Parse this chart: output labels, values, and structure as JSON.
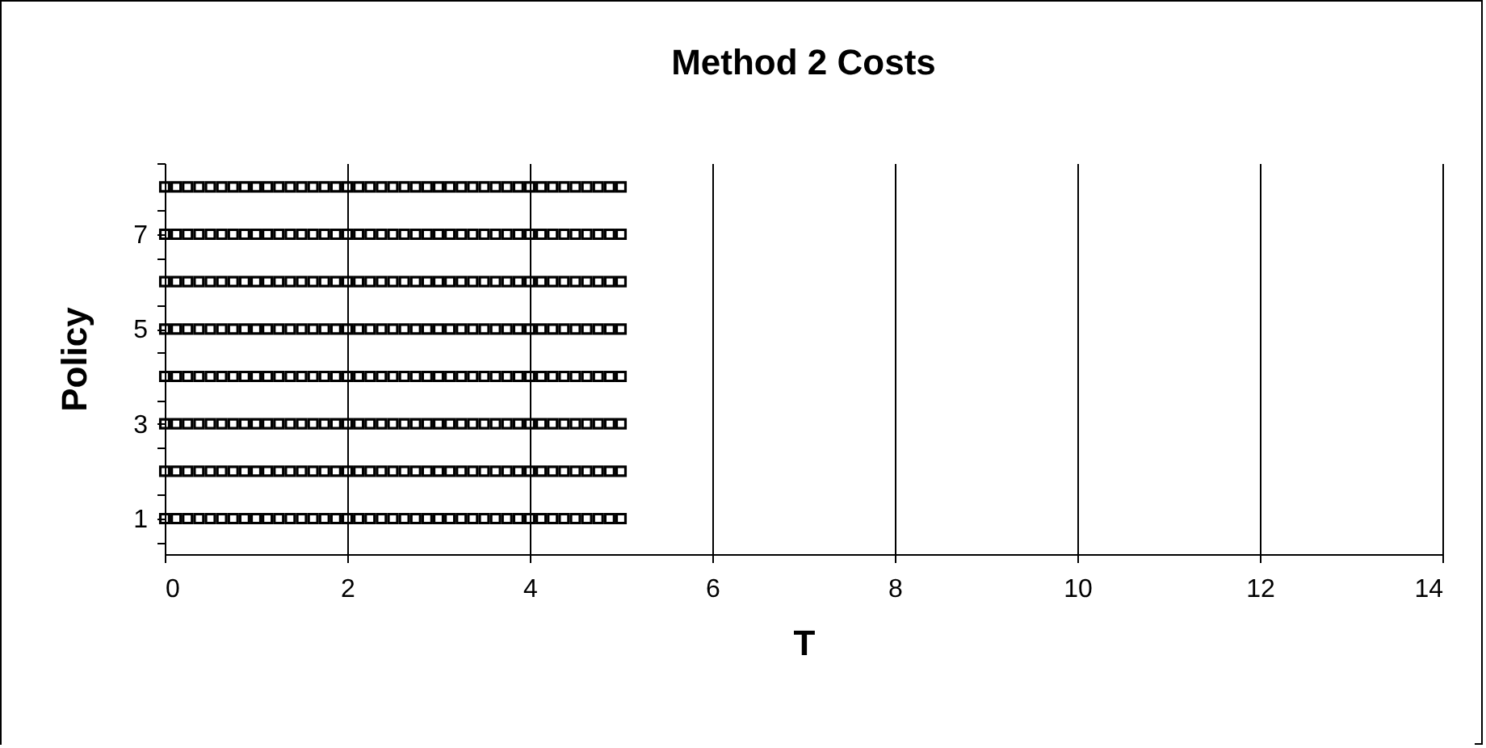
{
  "chart_data": {
    "type": "scatter",
    "title": "Method 2 Costs",
    "xlabel": "T",
    "ylabel": "Policy",
    "x": [
      0,
      0.125,
      0.25,
      0.375,
      0.5,
      0.625,
      0.75,
      0.875,
      1,
      1.125,
      1.25,
      1.375,
      1.5,
      1.625,
      1.75,
      1.875,
      2,
      2.125,
      2.25,
      2.375,
      2.5,
      2.625,
      2.75,
      2.875,
      3,
      3.125,
      3.25,
      3.375,
      3.5,
      3.625,
      3.75,
      3.875,
      4,
      4.125,
      4.25,
      4.375,
      4.5,
      4.625,
      4.75,
      4.875,
      5
    ],
    "series": [
      {
        "color": "#000000",
        "values": [
          1,
          1,
          1,
          1,
          1,
          1,
          1,
          1,
          1,
          1,
          1,
          1,
          1,
          1,
          1,
          1,
          1,
          1,
          1,
          1,
          1,
          1,
          1,
          1,
          1,
          1,
          1,
          1,
          1,
          1,
          1,
          1,
          1,
          1,
          1,
          1,
          1,
          1,
          1,
          1,
          1
        ]
      },
      {
        "color": "#000000",
        "values": [
          2,
          2,
          2,
          2,
          2,
          2,
          2,
          2,
          2,
          2,
          2,
          2,
          2,
          2,
          2,
          2,
          2,
          2,
          2,
          2,
          2,
          2,
          2,
          2,
          2,
          2,
          2,
          2,
          2,
          2,
          2,
          2,
          2,
          2,
          2,
          2,
          2,
          2,
          2,
          2,
          2
        ]
      },
      {
        "color": "#000000",
        "values": [
          3,
          3,
          3,
          3,
          3,
          3,
          3,
          3,
          3,
          3,
          3,
          3,
          3,
          3,
          3,
          3,
          3,
          3,
          3,
          3,
          3,
          3,
          3,
          3,
          3,
          3,
          3,
          3,
          3,
          3,
          3,
          3,
          3,
          3,
          3,
          3,
          3,
          3,
          3,
          3,
          3
        ]
      },
      {
        "color": "#000000",
        "values": [
          4,
          4,
          4,
          4,
          4,
          4,
          4,
          4,
          4,
          4,
          4,
          4,
          4,
          4,
          4,
          4,
          4,
          4,
          4,
          4,
          4,
          4,
          4,
          4,
          4,
          4,
          4,
          4,
          4,
          4,
          4,
          4,
          4,
          4,
          4,
          4,
          4,
          4,
          4,
          4,
          4
        ]
      },
      {
        "color": "#000000",
        "values": [
          5,
          5,
          5,
          5,
          5,
          5,
          5,
          5,
          5,
          5,
          5,
          5,
          5,
          5,
          5,
          5,
          5,
          5,
          5,
          5,
          5,
          5,
          5,
          5,
          5,
          5,
          5,
          5,
          5,
          5,
          5,
          5,
          5,
          5,
          5,
          5,
          5,
          5,
          5,
          5,
          5
        ]
      },
      {
        "color": "#000000",
        "values": [
          6,
          6,
          6,
          6,
          6,
          6,
          6,
          6,
          6,
          6,
          6,
          6,
          6,
          6,
          6,
          6,
          6,
          6,
          6,
          6,
          6,
          6,
          6,
          6,
          6,
          6,
          6,
          6,
          6,
          6,
          6,
          6,
          6,
          6,
          6,
          6,
          6,
          6,
          6,
          6,
          6
        ]
      },
      {
        "color": "#000000",
        "values": [
          7,
          7,
          7,
          7,
          7,
          7,
          7,
          7,
          7,
          7,
          7,
          7,
          7,
          7,
          7,
          7,
          7,
          7,
          7,
          7,
          7,
          7,
          7,
          7,
          7,
          7,
          7,
          7,
          7,
          7,
          7,
          7,
          7,
          7,
          7,
          7,
          7,
          7,
          7,
          7,
          7
        ]
      },
      {
        "color": "#000000",
        "values": [
          8,
          8,
          8,
          8,
          8,
          8,
          8,
          8,
          8,
          8,
          8,
          8,
          8,
          8,
          8,
          8,
          8,
          8,
          8,
          8,
          8,
          8,
          8,
          8,
          8,
          8,
          8,
          8,
          8,
          8,
          8,
          8,
          8,
          8,
          8,
          8,
          8,
          8,
          8,
          8,
          8
        ]
      }
    ],
    "xlim": [
      0,
      14
    ],
    "xticks": [
      0,
      2,
      4,
      6,
      8,
      10,
      12,
      14
    ],
    "ylim": [
      0.25,
      8.5
    ],
    "yticks": [
      {
        "value": 0.5,
        "label": null
      },
      1,
      {
        "value": 1.5,
        "label": null
      },
      {
        "value": 2.5,
        "label": null
      },
      3,
      {
        "value": 3.5,
        "label": null
      },
      {
        "value": 4.5,
        "label": null
      },
      5,
      {
        "value": 5.5,
        "label": null
      },
      {
        "value": 6.5,
        "label": null
      },
      7,
      {
        "value": 7.5,
        "label": null
      },
      {
        "value": 8.5,
        "label": null
      }
    ],
    "grid": "x",
    "marker": "square",
    "legend": false
  }
}
